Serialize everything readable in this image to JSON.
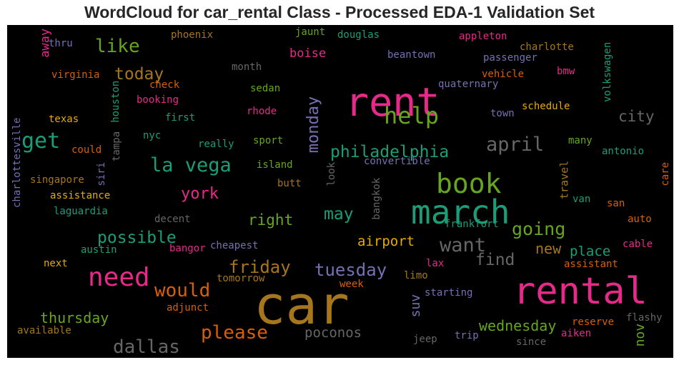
{
  "chart_data": {
    "type": "wordcloud",
    "title": "WordCloud for car_rental Class - Processed EDA-1 Validation Set",
    "background": "#000000",
    "palette": [
      "#1b9e77",
      "#d95f02",
      "#7570b3",
      "#e7298a",
      "#66a61e",
      "#e6ab02",
      "#a6761d",
      "#666666"
    ],
    "words": [
      {
        "text": "car",
        "weight": 100,
        "color": "#a6761d"
      },
      {
        "text": "rent",
        "weight": 78,
        "color": "#e7298a"
      },
      {
        "text": "rental",
        "weight": 75,
        "color": "#e7298a"
      },
      {
        "text": "march",
        "weight": 70,
        "color": "#1b9e77"
      },
      {
        "text": "book",
        "weight": 55,
        "color": "#66a61e"
      },
      {
        "text": "need",
        "weight": 50,
        "color": "#e7298a"
      },
      {
        "text": "help",
        "weight": 45,
        "color": "#66a61e"
      },
      {
        "text": "get",
        "weight": 42,
        "color": "#1b9e77"
      },
      {
        "text": "la vega",
        "weight": 38,
        "color": "#1b9e77"
      },
      {
        "text": "april",
        "weight": 37,
        "color": "#666666"
      },
      {
        "text": "want",
        "weight": 37,
        "color": "#666666"
      },
      {
        "text": "like",
        "weight": 36,
        "color": "#66a61e"
      },
      {
        "text": "would",
        "weight": 36,
        "color": "#d95f02"
      },
      {
        "text": "please",
        "weight": 36,
        "color": "#d95f02"
      },
      {
        "text": "dallas",
        "weight": 36,
        "color": "#666666"
      },
      {
        "text": "going",
        "weight": 35,
        "color": "#66a61e"
      },
      {
        "text": "friday",
        "weight": 34,
        "color": "#a6761d"
      },
      {
        "text": "tuesday",
        "weight": 34,
        "color": "#7570b3"
      },
      {
        "text": "today",
        "weight": 33,
        "color": "#a6761d"
      },
      {
        "text": "philadelphia",
        "weight": 33,
        "color": "#1b9e77"
      },
      {
        "text": "may",
        "weight": 33,
        "color": "#1b9e77"
      },
      {
        "text": "possible",
        "weight": 33,
        "color": "#1b9e77"
      },
      {
        "text": "find",
        "weight": 33,
        "color": "#666666"
      },
      {
        "text": "york",
        "weight": 32,
        "color": "#e7298a"
      },
      {
        "text": "monday",
        "weight": 31,
        "color": "#7570b3"
      },
      {
        "text": "city",
        "weight": 29,
        "color": "#666666"
      },
      {
        "text": "right",
        "weight": 29,
        "color": "#66a61e"
      },
      {
        "text": "thursday",
        "weight": 28,
        "color": "#66a61e"
      },
      {
        "text": "wednesday",
        "weight": 28,
        "color": "#66a61e"
      },
      {
        "text": "new",
        "weight": 28,
        "color": "#a6761d"
      },
      {
        "text": "poconos",
        "weight": 27,
        "color": "#666666"
      },
      {
        "text": "airport",
        "weight": 27,
        "color": "#e6ab02"
      },
      {
        "text": "place",
        "weight": 27,
        "color": "#1b9e77"
      },
      {
        "text": "suv",
        "weight": 26,
        "color": "#7570b3"
      },
      {
        "text": "nov",
        "weight": 26,
        "color": "#66a61e"
      },
      {
        "text": "boise",
        "weight": 25,
        "color": "#e7298a"
      },
      {
        "text": "away",
        "weight": 24,
        "color": "#e7298a"
      },
      {
        "text": "travel",
        "weight": 22,
        "color": "#a6761d"
      },
      {
        "text": "houston",
        "weight": 22,
        "color": "#1b9e77"
      },
      {
        "text": "volkswagen",
        "weight": 22,
        "color": "#1b9e77"
      },
      {
        "text": "charlottesville",
        "weight": 22,
        "color": "#7570b3"
      },
      {
        "text": "tampa",
        "weight": 22,
        "color": "#666666"
      },
      {
        "text": "siri",
        "weight": 22,
        "color": "#7570b3"
      },
      {
        "text": "look",
        "weight": 22,
        "color": "#666666"
      },
      {
        "text": "bangkok",
        "weight": 22,
        "color": "#666666"
      },
      {
        "text": "care",
        "weight": 22,
        "color": "#d95f02"
      },
      {
        "text": "phoenix",
        "weight": 22,
        "color": "#a6761d"
      },
      {
        "text": "jaunt",
        "weight": 22,
        "color": "#66a61e"
      },
      {
        "text": "douglas",
        "weight": 22,
        "color": "#1b9e77"
      },
      {
        "text": "appleton",
        "weight": 22,
        "color": "#e7298a"
      },
      {
        "text": "thru",
        "weight": 22,
        "color": "#7570b3"
      },
      {
        "text": "charlotte",
        "weight": 22,
        "color": "#a6761d"
      },
      {
        "text": "beantown",
        "weight": 22,
        "color": "#7570b3"
      },
      {
        "text": "passenger",
        "weight": 22,
        "color": "#7570b3"
      },
      {
        "text": "month",
        "weight": 22,
        "color": "#666666"
      },
      {
        "text": "bmw",
        "weight": 22,
        "color": "#e7298a"
      },
      {
        "text": "virginia",
        "weight": 22,
        "color": "#d95f02"
      },
      {
        "text": "vehicle",
        "weight": 22,
        "color": "#d95f02"
      },
      {
        "text": "check",
        "weight": 22,
        "color": "#d95f02"
      },
      {
        "text": "quaternary",
        "weight": 22,
        "color": "#7570b3"
      },
      {
        "text": "sedan",
        "weight": 22,
        "color": "#66a61e"
      },
      {
        "text": "booking",
        "weight": 22,
        "color": "#e7298a"
      },
      {
        "text": "schedule",
        "weight": 22,
        "color": "#e6ab02"
      },
      {
        "text": "rhode",
        "weight": 22,
        "color": "#e7298a"
      },
      {
        "text": "texas",
        "weight": 22,
        "color": "#e6ab02"
      },
      {
        "text": "first",
        "weight": 22,
        "color": "#1b9e77"
      },
      {
        "text": "town",
        "weight": 22,
        "color": "#7570b3"
      },
      {
        "text": "nyc",
        "weight": 22,
        "color": "#1b9e77"
      },
      {
        "text": "really",
        "weight": 22,
        "color": "#1b9e77"
      },
      {
        "text": "sport",
        "weight": 22,
        "color": "#66a61e"
      },
      {
        "text": "many",
        "weight": 22,
        "color": "#66a61e"
      },
      {
        "text": "could",
        "weight": 22,
        "color": "#d95f02"
      },
      {
        "text": "antonio",
        "weight": 22,
        "color": "#1b9e77"
      },
      {
        "text": "island",
        "weight": 22,
        "color": "#66a61e"
      },
      {
        "text": "convertible",
        "weight": 22,
        "color": "#7570b3"
      },
      {
        "text": "singapore",
        "weight": 22,
        "color": "#a6761d"
      },
      {
        "text": "butt",
        "weight": 22,
        "color": "#a6761d"
      },
      {
        "text": "assistance",
        "weight": 22,
        "color": "#e6ab02"
      },
      {
        "text": "van",
        "weight": 22,
        "color": "#1b9e77"
      },
      {
        "text": "laguardia",
        "weight": 22,
        "color": "#1b9e77"
      },
      {
        "text": "san",
        "weight": 22,
        "color": "#d95f02"
      },
      {
        "text": "decent",
        "weight": 22,
        "color": "#666666"
      },
      {
        "text": "frankfort",
        "weight": 22,
        "color": "#1b9e77"
      },
      {
        "text": "auto",
        "weight": 22,
        "color": "#d95f02"
      },
      {
        "text": "cheapest",
        "weight": 22,
        "color": "#7570b3"
      },
      {
        "text": "bangor",
        "weight": 22,
        "color": "#e7298a"
      },
      {
        "text": "austin",
        "weight": 22,
        "color": "#1b9e77"
      },
      {
        "text": "cable",
        "weight": 22,
        "color": "#e7298a"
      },
      {
        "text": "next",
        "weight": 22,
        "color": "#e6ab02"
      },
      {
        "text": "lax",
        "weight": 22,
        "color": "#e7298a"
      },
      {
        "text": "assistant",
        "weight": 22,
        "color": "#d95f02"
      },
      {
        "text": "tomorrow",
        "weight": 22,
        "color": "#a6761d"
      },
      {
        "text": "limo",
        "weight": 22,
        "color": "#a6761d"
      },
      {
        "text": "week",
        "weight": 22,
        "color": "#d95f02"
      },
      {
        "text": "starting",
        "weight": 22,
        "color": "#7570b3"
      },
      {
        "text": "adjunct",
        "weight": 22,
        "color": "#d95f02"
      },
      {
        "text": "reserve",
        "weight": 22,
        "color": "#d95f02"
      },
      {
        "text": "flashy",
        "weight": 22,
        "color": "#666666"
      },
      {
        "text": "available",
        "weight": 22,
        "color": "#a6761d"
      },
      {
        "text": "aiken",
        "weight": 22,
        "color": "#e7298a"
      },
      {
        "text": "jeep",
        "weight": 22,
        "color": "#666666"
      },
      {
        "text": "trip",
        "weight": 22,
        "color": "#7570b3"
      },
      {
        "text": "since",
        "weight": 22,
        "color": "#666666"
      }
    ]
  }
}
